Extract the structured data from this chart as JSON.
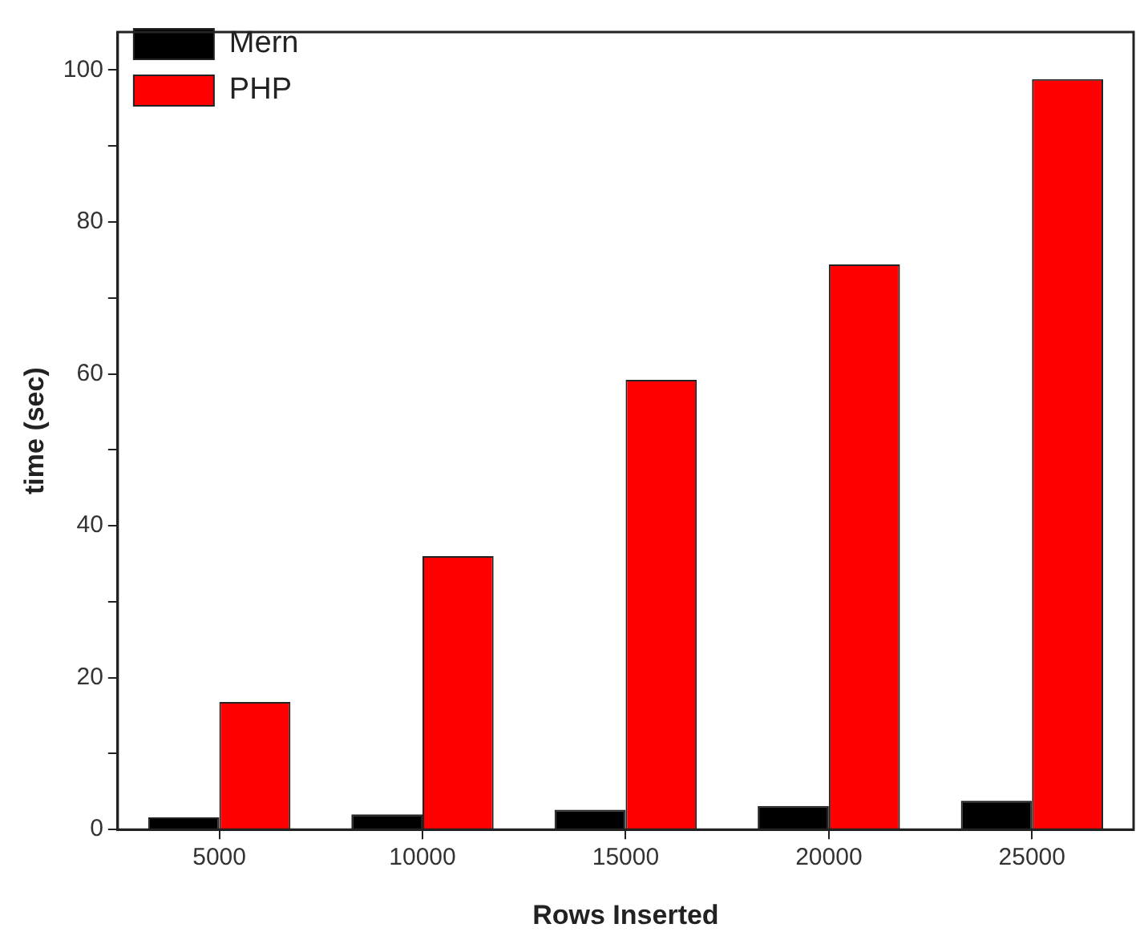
{
  "chart_data": {
    "type": "bar",
    "xlabel": "Rows Inserted",
    "ylabel": "time (sec)",
    "categories": [
      "5000",
      "10000",
      "15000",
      "20000",
      "25000"
    ],
    "series": [
      {
        "name": "Mern",
        "color": "#000000",
        "values": [
          1.6,
          2.0,
          2.6,
          3.1,
          3.8
        ]
      },
      {
        "name": "PHP",
        "color": "#ff0000",
        "values": [
          16.8,
          36.0,
          59.2,
          74.4,
          98.8
        ]
      }
    ],
    "ylim": [
      0,
      105
    ],
    "yticks": [
      0,
      {
        "value": 10,
        "label": null
      },
      20,
      {
        "value": 30,
        "label": null
      },
      40,
      {
        "value": 50,
        "label": null
      },
      60,
      {
        "value": 70,
        "label": null
      },
      80,
      {
        "value": 90,
        "label": null
      },
      100
    ],
    "grid": false,
    "legend": "top left"
  }
}
